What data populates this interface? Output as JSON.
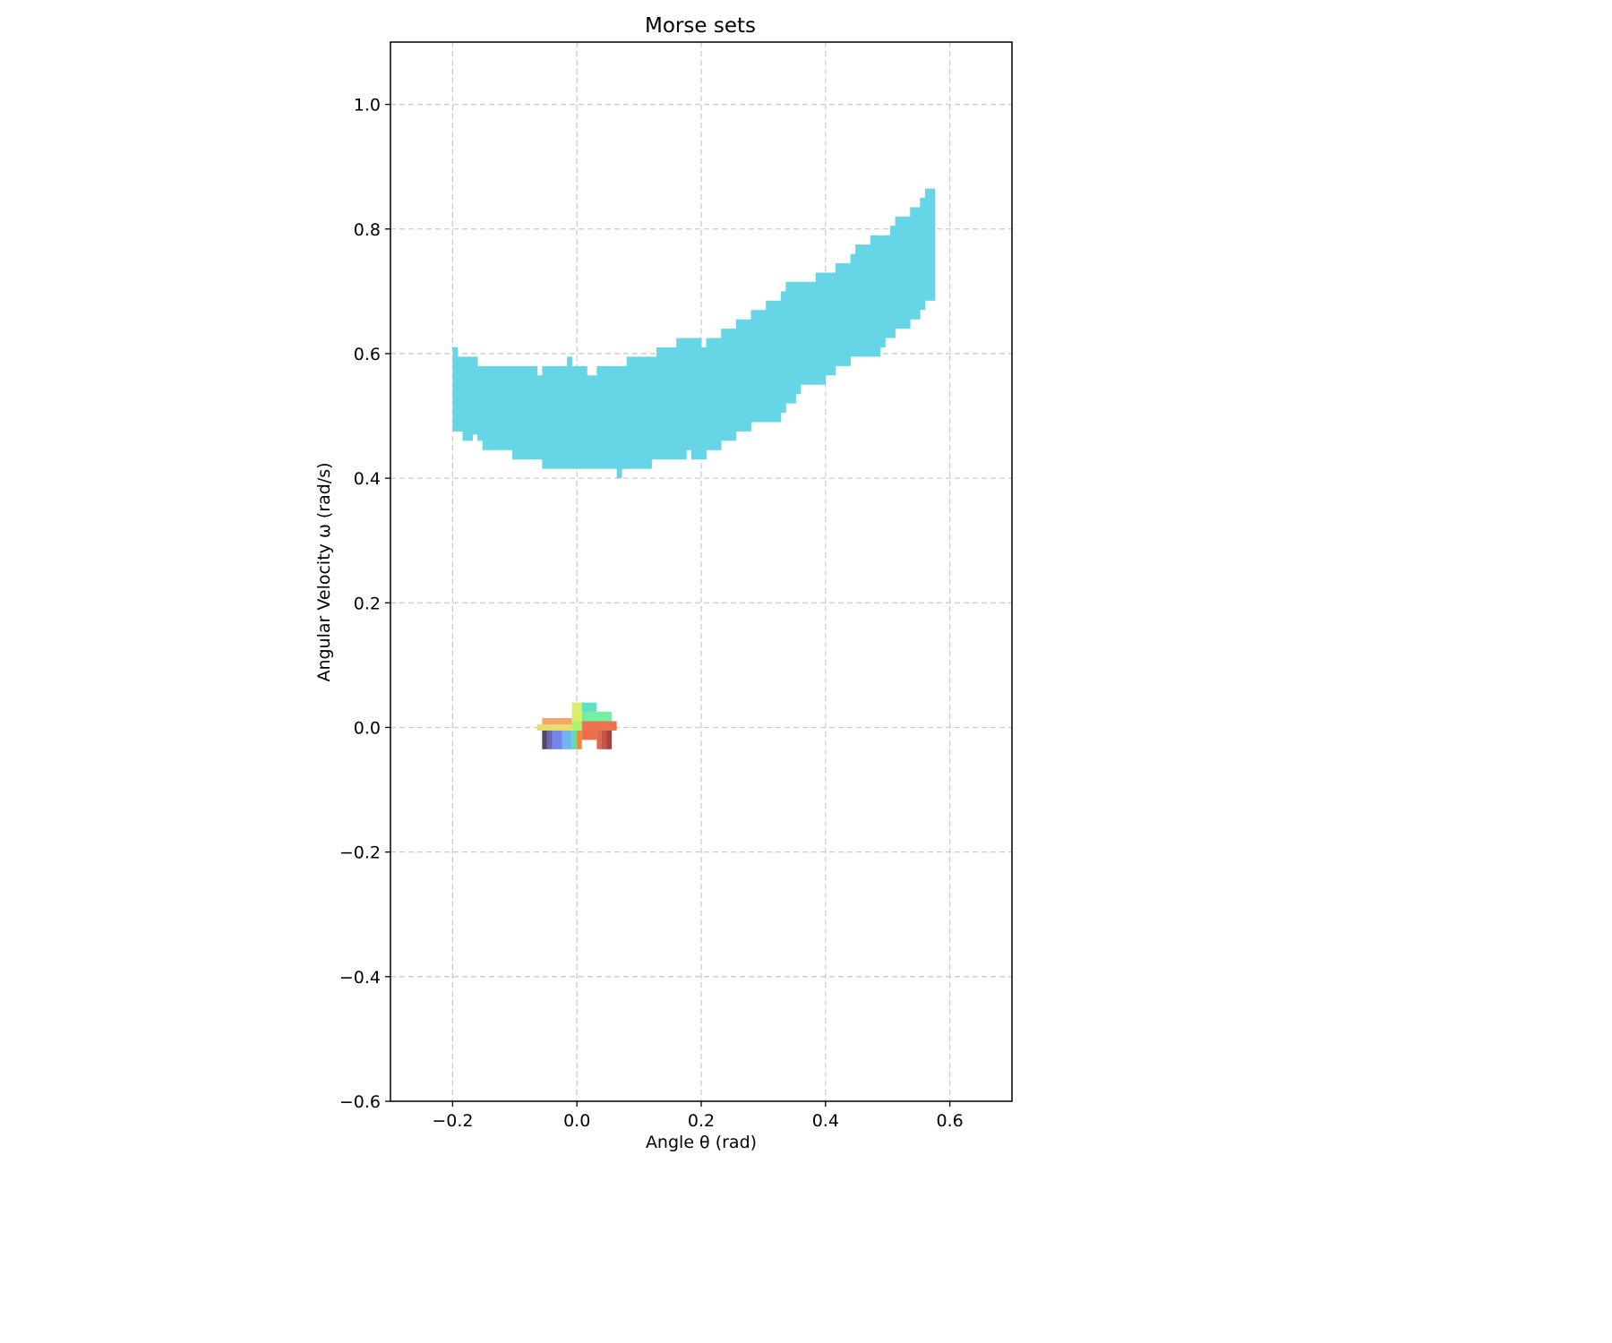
{
  "chart_data": {
    "type": "heatmap",
    "title": "Morse sets",
    "xlabel": "Angle θ (rad)",
    "ylabel": "Angular Velocity ω (rad/s)",
    "xlim": [
      -0.3,
      0.7
    ],
    "ylim": [
      -0.6,
      1.1
    ],
    "grid": true,
    "x_ticks": [
      -0.2,
      0.0,
      0.2,
      0.4,
      0.6
    ],
    "x_tick_labels": [
      "−0.2",
      "0.0",
      "0.2",
      "0.4",
      "0.6"
    ],
    "y_ticks": [
      -0.6,
      -0.4,
      -0.2,
      0.0,
      0.2,
      0.4,
      0.6,
      0.8,
      1.0
    ],
    "y_tick_labels": [
      "−0.6",
      "−0.4",
      "−0.2",
      "0.0",
      "0.2",
      "0.4",
      "0.6",
      "0.8",
      "1.0"
    ],
    "morse_sets": [
      {
        "name": "upper-band",
        "color": "#66d6e6",
        "cell_width": 0.008,
        "columns": [
          {
            "x0": -0.2,
            "x1": -0.192,
            "lo": 0.475,
            "hi": 0.61
          },
          {
            "x0": -0.192,
            "x1": -0.184,
            "lo": 0.475,
            "hi": 0.595
          },
          {
            "x0": -0.184,
            "x1": -0.168,
            "lo": 0.46,
            "hi": 0.595
          },
          {
            "x0": -0.168,
            "x1": -0.16,
            "lo": 0.47,
            "hi": 0.595
          },
          {
            "x0": -0.16,
            "x1": -0.152,
            "lo": 0.46,
            "hi": 0.58
          },
          {
            "x0": -0.152,
            "x1": -0.104,
            "lo": 0.445,
            "hi": 0.58
          },
          {
            "x0": -0.104,
            "x1": -0.064,
            "lo": 0.43,
            "hi": 0.58
          },
          {
            "x0": -0.064,
            "x1": -0.056,
            "lo": 0.43,
            "hi": 0.565
          },
          {
            "x0": -0.056,
            "x1": -0.016,
            "lo": 0.415,
            "hi": 0.58
          },
          {
            "x0": -0.016,
            "x1": -0.008,
            "lo": 0.415,
            "hi": 0.595
          },
          {
            "x0": -0.008,
            "x1": 0.016,
            "lo": 0.415,
            "hi": 0.58
          },
          {
            "x0": 0.016,
            "x1": 0.032,
            "lo": 0.415,
            "hi": 0.565
          },
          {
            "x0": 0.032,
            "x1": 0.064,
            "lo": 0.415,
            "hi": 0.58
          },
          {
            "x0": 0.064,
            "x1": 0.072,
            "lo": 0.4,
            "hi": 0.58
          },
          {
            "x0": 0.072,
            "x1": 0.08,
            "lo": 0.415,
            "hi": 0.58
          },
          {
            "x0": 0.08,
            "x1": 0.12,
            "lo": 0.415,
            "hi": 0.595
          },
          {
            "x0": 0.12,
            "x1": 0.128,
            "lo": 0.43,
            "hi": 0.595
          },
          {
            "x0": 0.128,
            "x1": 0.16,
            "lo": 0.43,
            "hi": 0.61
          },
          {
            "x0": 0.16,
            "x1": 0.176,
            "lo": 0.43,
            "hi": 0.625
          },
          {
            "x0": 0.176,
            "x1": 0.184,
            "lo": 0.445,
            "hi": 0.625
          },
          {
            "x0": 0.184,
            "x1": 0.2,
            "lo": 0.43,
            "hi": 0.625
          },
          {
            "x0": 0.2,
            "x1": 0.208,
            "lo": 0.43,
            "hi": 0.61
          },
          {
            "x0": 0.208,
            "x1": 0.232,
            "lo": 0.445,
            "hi": 0.625
          },
          {
            "x0": 0.232,
            "x1": 0.256,
            "lo": 0.46,
            "hi": 0.64
          },
          {
            "x0": 0.256,
            "x1": 0.28,
            "lo": 0.475,
            "hi": 0.655
          },
          {
            "x0": 0.28,
            "x1": 0.304,
            "lo": 0.49,
            "hi": 0.67
          },
          {
            "x0": 0.304,
            "x1": 0.328,
            "lo": 0.49,
            "hi": 0.685
          },
          {
            "x0": 0.328,
            "x1": 0.336,
            "lo": 0.505,
            "hi": 0.7
          },
          {
            "x0": 0.336,
            "x1": 0.352,
            "lo": 0.52,
            "hi": 0.715
          },
          {
            "x0": 0.352,
            "x1": 0.36,
            "lo": 0.535,
            "hi": 0.715
          },
          {
            "x0": 0.36,
            "x1": 0.384,
            "lo": 0.55,
            "hi": 0.715
          },
          {
            "x0": 0.384,
            "x1": 0.4,
            "lo": 0.55,
            "hi": 0.73
          },
          {
            "x0": 0.4,
            "x1": 0.416,
            "lo": 0.565,
            "hi": 0.73
          },
          {
            "x0": 0.416,
            "x1": 0.44,
            "lo": 0.58,
            "hi": 0.745
          },
          {
            "x0": 0.44,
            "x1": 0.448,
            "lo": 0.595,
            "hi": 0.76
          },
          {
            "x0": 0.448,
            "x1": 0.472,
            "lo": 0.595,
            "hi": 0.775
          },
          {
            "x0": 0.472,
            "x1": 0.488,
            "lo": 0.595,
            "hi": 0.79
          },
          {
            "x0": 0.488,
            "x1": 0.496,
            "lo": 0.61,
            "hi": 0.79
          },
          {
            "x0": 0.496,
            "x1": 0.504,
            "lo": 0.625,
            "hi": 0.79
          },
          {
            "x0": 0.504,
            "x1": 0.512,
            "lo": 0.625,
            "hi": 0.805
          },
          {
            "x0": 0.512,
            "x1": 0.536,
            "lo": 0.64,
            "hi": 0.82
          },
          {
            "x0": 0.536,
            "x1": 0.552,
            "lo": 0.655,
            "hi": 0.835
          },
          {
            "x0": 0.552,
            "x1": 0.56,
            "lo": 0.67,
            "hi": 0.85
          },
          {
            "x0": 0.56,
            "x1": 0.568,
            "lo": 0.685,
            "hi": 0.865
          },
          {
            "x0": 0.568,
            "x1": 0.576,
            "lo": 0.685,
            "hi": 0.865
          }
        ]
      },
      {
        "name": "origin-cluster",
        "cells": [
          {
            "x0": -0.056,
            "x1": -0.008,
            "y0": 0.0,
            "y1": 0.015,
            "color": "#f4a56a"
          },
          {
            "x0": -0.064,
            "x1": -0.008,
            "y0": -0.005,
            "y1": 0.005,
            "color": "#e6df6c"
          },
          {
            "x0": -0.008,
            "x1": 0.008,
            "y0": 0.0,
            "y1": 0.04,
            "color": "#d9ef6a"
          },
          {
            "x0": -0.008,
            "x1": 0.008,
            "y0": -0.005,
            "y1": 0.01,
            "color": "#a8f56c"
          },
          {
            "x0": 0.008,
            "x1": 0.056,
            "y0": 0.01,
            "y1": 0.025,
            "color": "#74eea0"
          },
          {
            "x0": 0.008,
            "x1": 0.032,
            "y0": 0.025,
            "y1": 0.04,
            "color": "#62dfc2"
          },
          {
            "x0": 0.008,
            "x1": 0.064,
            "y0": -0.005,
            "y1": 0.01,
            "color": "#ee7250"
          },
          {
            "x0": -0.056,
            "x1": -0.048,
            "y0": -0.035,
            "y1": -0.005,
            "color": "#554866"
          },
          {
            "x0": -0.048,
            "x1": -0.04,
            "y0": -0.035,
            "y1": -0.005,
            "color": "#6a67ba"
          },
          {
            "x0": -0.04,
            "x1": -0.024,
            "y0": -0.035,
            "y1": -0.005,
            "color": "#7585ec"
          },
          {
            "x0": -0.024,
            "x1": -0.008,
            "y0": -0.035,
            "y1": -0.005,
            "color": "#72b6f0"
          },
          {
            "x0": -0.008,
            "x1": 0.0,
            "y0": -0.035,
            "y1": -0.005,
            "color": "#58e0a6"
          },
          {
            "x0": 0.0,
            "x1": 0.008,
            "y0": -0.035,
            "y1": -0.005,
            "color": "#ec8a3c"
          },
          {
            "x0": 0.008,
            "x1": 0.032,
            "y0": -0.02,
            "y1": -0.005,
            "color": "#e9704a"
          },
          {
            "x0": 0.032,
            "x1": 0.04,
            "y0": -0.035,
            "y1": -0.005,
            "color": "#dd6a4e"
          },
          {
            "x0": 0.04,
            "x1": 0.048,
            "y0": -0.035,
            "y1": -0.005,
            "color": "#c6564a"
          },
          {
            "x0": 0.048,
            "x1": 0.056,
            "y0": -0.035,
            "y1": -0.005,
            "color": "#a8423e"
          }
        ]
      }
    ]
  }
}
